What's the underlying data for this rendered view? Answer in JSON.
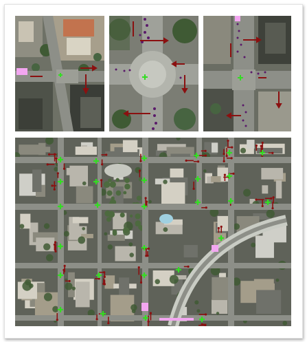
{
  "figure": {
    "panels": [
      {
        "id": "zoom-left",
        "description_name": "intersection-zoom-1"
      },
      {
        "id": "zoom-middle",
        "description_name": "roundabout-zoom"
      },
      {
        "id": "zoom-right",
        "description_name": "intersection-zoom-2"
      },
      {
        "id": "overview",
        "description_name": "city-overview"
      }
    ],
    "colors": {
      "signal_marker": "#33dd22",
      "flow_arrow": "#8b1010",
      "vehicle_dot": "#5a1a6a",
      "highlight_region": "#f2a6f0",
      "road": "#8d8f88",
      "greenery": "#3f5a34",
      "building": "#b9b6ac"
    },
    "legend_icons": [
      "traffic-signal-marker-icon",
      "flow-arrow-icon",
      "vehicle-dot-icon"
    ]
  }
}
